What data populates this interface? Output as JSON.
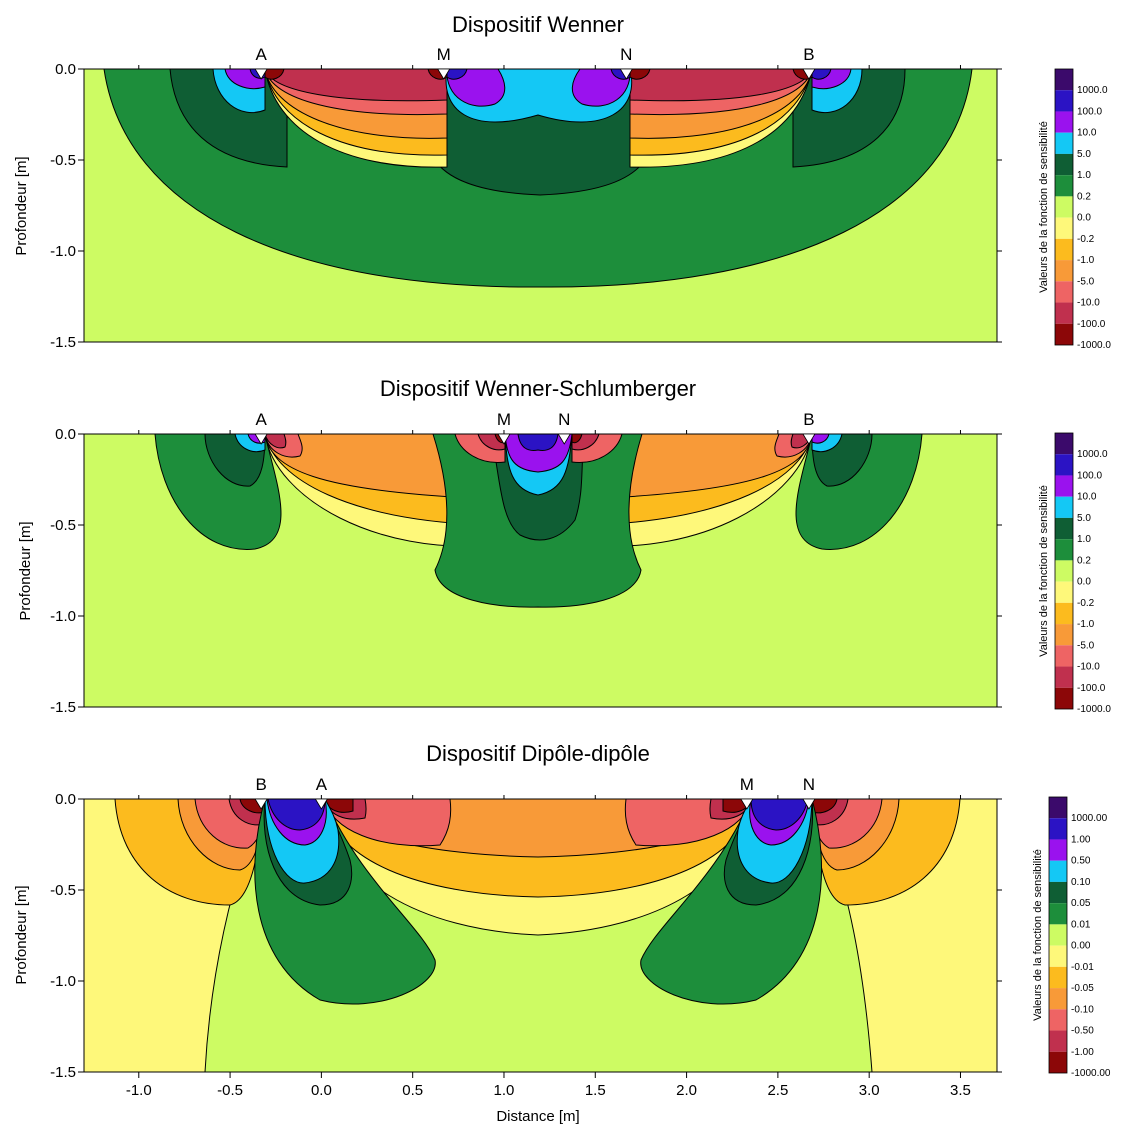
{
  "chart_data": [
    {
      "type": "heatmap",
      "title": "Dispositif Wenner",
      "ylabel": "Profondeur [m]",
      "xlim": [
        -1.3,
        3.7
      ],
      "ylim": [
        -1.5,
        0.0
      ],
      "yticks": [
        "0.0",
        "-0.5",
        "-1.0",
        "-1.5"
      ],
      "electrodes": [
        {
          "label": "A",
          "x": -0.33
        },
        {
          "label": "M",
          "x": 0.67
        },
        {
          "label": "N",
          "x": 1.67
        },
        {
          "label": "B",
          "x": 2.67
        }
      ],
      "colorbar": {
        "title": "Valeurs de la fonction de sensibilité",
        "labels": [
          "1000.0",
          "100.0",
          "10.0",
          "5.0",
          "1.0",
          "0.2",
          "0.0",
          "-0.2",
          "-1.0",
          "-5.0",
          "-10.0",
          "-100.0",
          "-1000.0"
        ],
        "colors": [
          "#3b0a6b",
          "#2b13c4",
          "#9a12ee",
          "#14c8f5",
          "#0f5e34",
          "#1d8e3b",
          "#cdfb63",
          "#fef87a",
          "#fcbb1e",
          "#f89a38",
          "#ee6464",
          "#c0304e",
          "#8c0708"
        ]
      }
    },
    {
      "type": "heatmap",
      "title": "Dispositif Wenner-Schlumberger",
      "ylabel": "Profondeur [m]",
      "xlim": [
        -1.3,
        3.7
      ],
      "ylim": [
        -1.5,
        0.0
      ],
      "yticks": [
        "0.0",
        "-0.5",
        "-1.0",
        "-1.5"
      ],
      "electrodes": [
        {
          "label": "A",
          "x": -0.33
        },
        {
          "label": "M",
          "x": 1.0
        },
        {
          "label": "N",
          "x": 1.33
        },
        {
          "label": "B",
          "x": 2.67
        }
      ],
      "colorbar": {
        "title": "Valeurs de la fonction de sensibilité",
        "labels": [
          "1000.0",
          "100.0",
          "10.0",
          "5.0",
          "1.0",
          "0.2",
          "0.0",
          "-0.2",
          "-1.0",
          "-5.0",
          "-10.0",
          "-100.0",
          "-1000.0"
        ],
        "colors": [
          "#3b0a6b",
          "#2b13c4",
          "#9a12ee",
          "#14c8f5",
          "#0f5e34",
          "#1d8e3b",
          "#cdfb63",
          "#fef87a",
          "#fcbb1e",
          "#f89a38",
          "#ee6464",
          "#c0304e",
          "#8c0708"
        ]
      }
    },
    {
      "type": "heatmap",
      "title": "Dispositif Dipôle-dipôle",
      "ylabel": "Profondeur [m]",
      "xlabel": "Distance [m]",
      "xlim": [
        -1.3,
        3.7
      ],
      "ylim": [
        -1.5,
        0.0
      ],
      "xticks": [
        "-1.0",
        "-0.5",
        "0.0",
        "0.5",
        "1.0",
        "1.5",
        "2.0",
        "2.5",
        "3.0",
        "3.5"
      ],
      "yticks": [
        "0.0",
        "-0.5",
        "-1.0",
        "-1.5"
      ],
      "electrodes": [
        {
          "label": "B",
          "x": -0.33
        },
        {
          "label": "A",
          "x": 0.0
        },
        {
          "label": "M",
          "x": 2.33
        },
        {
          "label": "N",
          "x": 2.67
        }
      ],
      "colorbar": {
        "title": "Valeurs de la fonction de sensibilité",
        "labels": [
          "1000.00",
          "1.00",
          "0.50",
          "0.10",
          "0.05",
          "0.01",
          "0.00",
          "-0.01",
          "-0.05",
          "-0.10",
          "-0.50",
          "-1.00",
          "-1000.00"
        ],
        "colors": [
          "#3b0a6b",
          "#2b13c4",
          "#9a12ee",
          "#14c8f5",
          "#0f5e34",
          "#1d8e3b",
          "#cdfb63",
          "#fef87a",
          "#fcbb1e",
          "#f89a38",
          "#ee6464",
          "#c0304e",
          "#8c0708"
        ]
      }
    }
  ]
}
